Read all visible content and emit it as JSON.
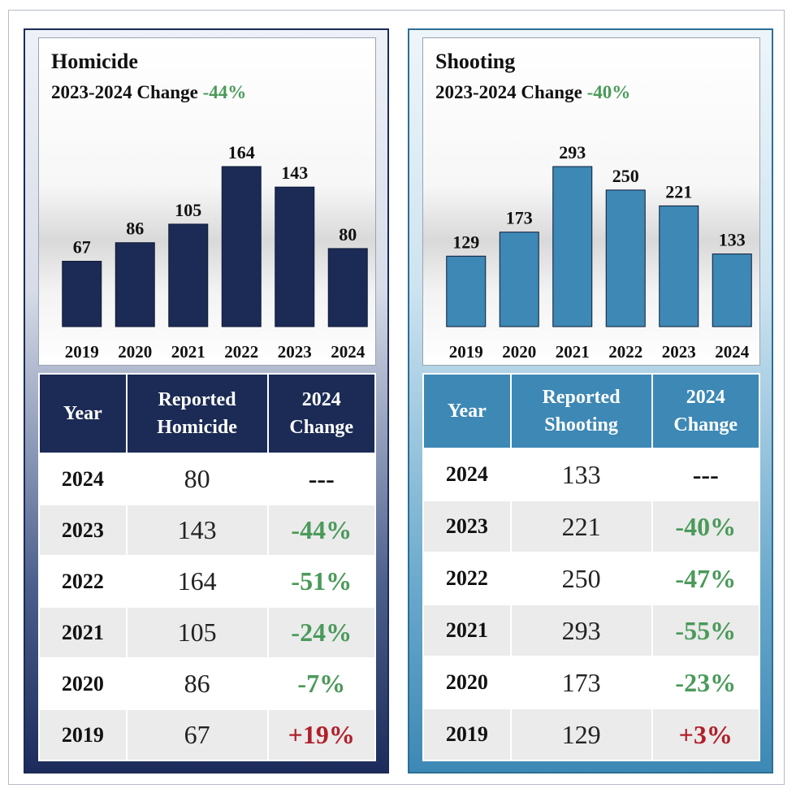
{
  "panels": [
    {
      "id": "homicide",
      "chart_title": "Homicide",
      "subtitle_prefix": "2023-2024 Change",
      "subtitle_change": "-44%",
      "bar_color": "#1c2b55",
      "table": {
        "headers": [
          "Year",
          "Reported\nHomicide",
          "2024\nChange"
        ],
        "rows": [
          {
            "year": "2024",
            "value": "80",
            "change": "---"
          },
          {
            "year": "2023",
            "value": "143",
            "change": "-44%"
          },
          {
            "year": "2022",
            "value": "164",
            "change": "-51%"
          },
          {
            "year": "2021",
            "value": "105",
            "change": "-24%"
          },
          {
            "year": "2020",
            "value": "86",
            "change": "-7%"
          },
          {
            "year": "2019",
            "value": "67",
            "change": "+19%"
          }
        ]
      }
    },
    {
      "id": "shooting",
      "chart_title": "Shooting",
      "subtitle_prefix": "2023-2024 Change",
      "subtitle_change": "-40%",
      "bar_color": "#3d88b5",
      "table": {
        "headers": [
          "Year",
          "Reported\nShooting",
          "2024\nChange"
        ],
        "rows": [
          {
            "year": "2024",
            "value": "133",
            "change": "---"
          },
          {
            "year": "2023",
            "value": "221",
            "change": "-40%"
          },
          {
            "year": "2022",
            "value": "250",
            "change": "-47%"
          },
          {
            "year": "2021",
            "value": "293",
            "change": "-55%"
          },
          {
            "year": "2020",
            "value": "173",
            "change": "-23%"
          },
          {
            "year": "2019",
            "value": "129",
            "change": "+3%"
          }
        ]
      }
    }
  ],
  "chart_data": [
    {
      "type": "bar",
      "title": "Homicide",
      "subtitle": "2023-2024 Change -44%",
      "categories": [
        "2019",
        "2020",
        "2021",
        "2022",
        "2023",
        "2024"
      ],
      "values": [
        67,
        86,
        105,
        164,
        143,
        80
      ],
      "data_labels": true,
      "ylim": [
        0,
        220
      ],
      "grid": false,
      "xlabel": "",
      "ylabel": ""
    },
    {
      "type": "bar",
      "title": "Shooting",
      "subtitle": "2023-2024 Change -40%",
      "categories": [
        "2019",
        "2020",
        "2021",
        "2022",
        "2023",
        "2024"
      ],
      "values": [
        129,
        173,
        293,
        250,
        221,
        133
      ],
      "data_labels": true,
      "ylim": [
        0,
        380
      ],
      "grid": false,
      "xlabel": "",
      "ylabel": ""
    }
  ]
}
